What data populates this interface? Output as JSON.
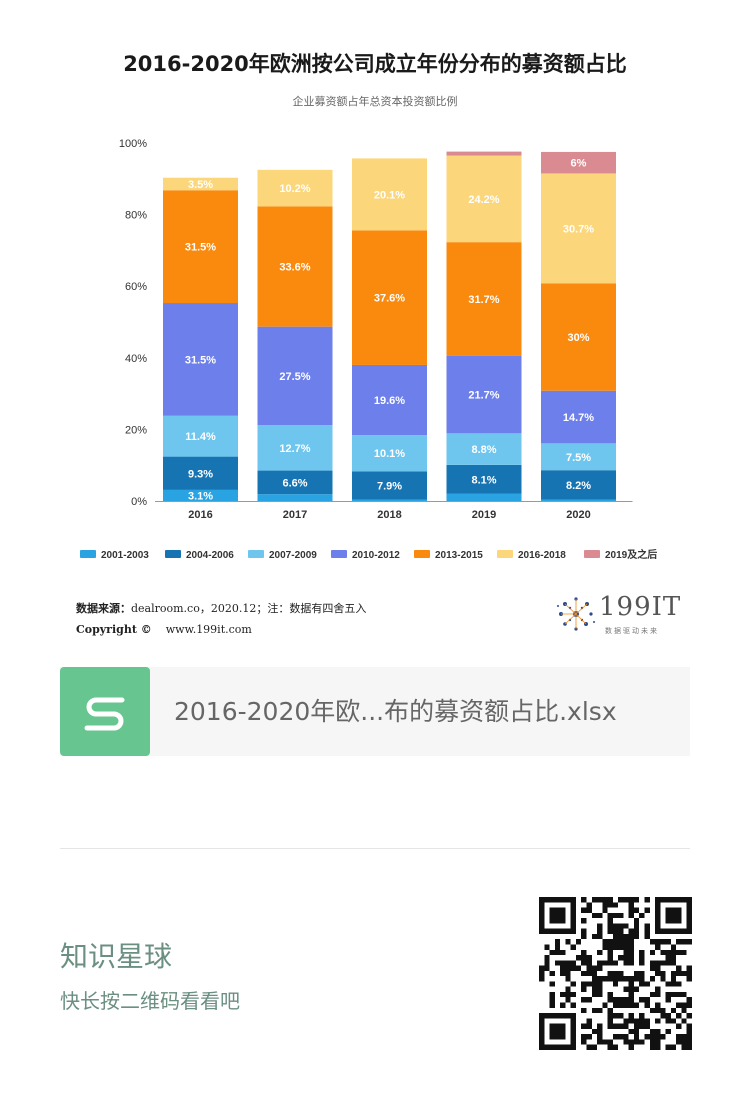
{
  "header": {
    "title": "2016-2020年欧洲按公司成立年份分布的募资额占比",
    "subtitle": "企业募资额占年总资本投资额比例"
  },
  "chart_data": {
    "type": "bar",
    "stacked": true,
    "title": "2016-2020年欧洲按公司成立年份分布的募资额占比",
    "subtitle": "企业募资额占年总资本投资额比例",
    "categories": [
      "2016",
      "2017",
      "2018",
      "2019",
      "2020"
    ],
    "ylim": [
      0,
      100
    ],
    "yticks": [
      "0%",
      "20%",
      "40%",
      "60%",
      "80%",
      "100%"
    ],
    "grid": false,
    "legend_position": "bottom",
    "series": [
      {
        "name": "2001-2003",
        "color": "#2aa3e2",
        "values": [
          3.1,
          1.9,
          0.4,
          2,
          0.4
        ],
        "labels": [
          "3.1%",
          "1.9%",
          "",
          "2%",
          ""
        ]
      },
      {
        "name": "2004-2006",
        "color": "#1674b3",
        "values": [
          9.3,
          6.6,
          7.9,
          8.1,
          8.2
        ],
        "labels": [
          "9.3%",
          "6.6%",
          "7.9%",
          "8.1%",
          "8.2%"
        ]
      },
      {
        "name": "2007-2009",
        "color": "#6ec6ef",
        "values": [
          11.4,
          12.7,
          10.1,
          8.8,
          7.5
        ],
        "labels": [
          "11.4%",
          "12.7%",
          "10.1%",
          "8.8%",
          "7.5%"
        ]
      },
      {
        "name": "2010-2012",
        "color": "#6d7fea",
        "values": [
          31.5,
          27.5,
          19.6,
          21.7,
          14.7
        ],
        "labels": [
          "31.5%",
          "27.5%",
          "19.6%",
          "21.7%",
          "14.7%"
        ]
      },
      {
        "name": "2013-2015",
        "color": "#f98a0e",
        "values": [
          31.5,
          33.6,
          37.6,
          31.7,
          30
        ],
        "labels": [
          "31.5%",
          "33.6%",
          "37.6%",
          "31.7%",
          "30%"
        ]
      },
      {
        "name": "2016-2018",
        "color": "#fcd67b",
        "values": [
          3.5,
          10.2,
          20.1,
          24.2,
          30.7
        ],
        "labels": [
          "3.5%",
          "10.2%",
          "20.1%",
          "24.2%",
          "30.7%"
        ]
      },
      {
        "name": "2019及之后",
        "color": "#d98b91",
        "values": [
          0,
          0,
          0,
          1.1,
          6
        ],
        "labels": [
          "",
          "",
          "",
          "",
          "6%"
        ]
      }
    ]
  },
  "footer": {
    "source_label": "数据来源：",
    "source_value": "dealroom.co，2020.12；注：数据有四舍五入",
    "copyright": "Copyright ©",
    "url": "www.199it.com",
    "logo_text": "199IT",
    "logo_tagline": "数据驱动未来"
  },
  "file_card": {
    "file_name": "2016-2020年欧...布的募资额占比.xlsx",
    "icon": "spreadsheet-s-icon",
    "icon_color": "#67c58f"
  },
  "planet": {
    "title": "知识星球",
    "subtitle": "快长按二维码看看吧",
    "qr_icon": "qr-code-icon"
  }
}
